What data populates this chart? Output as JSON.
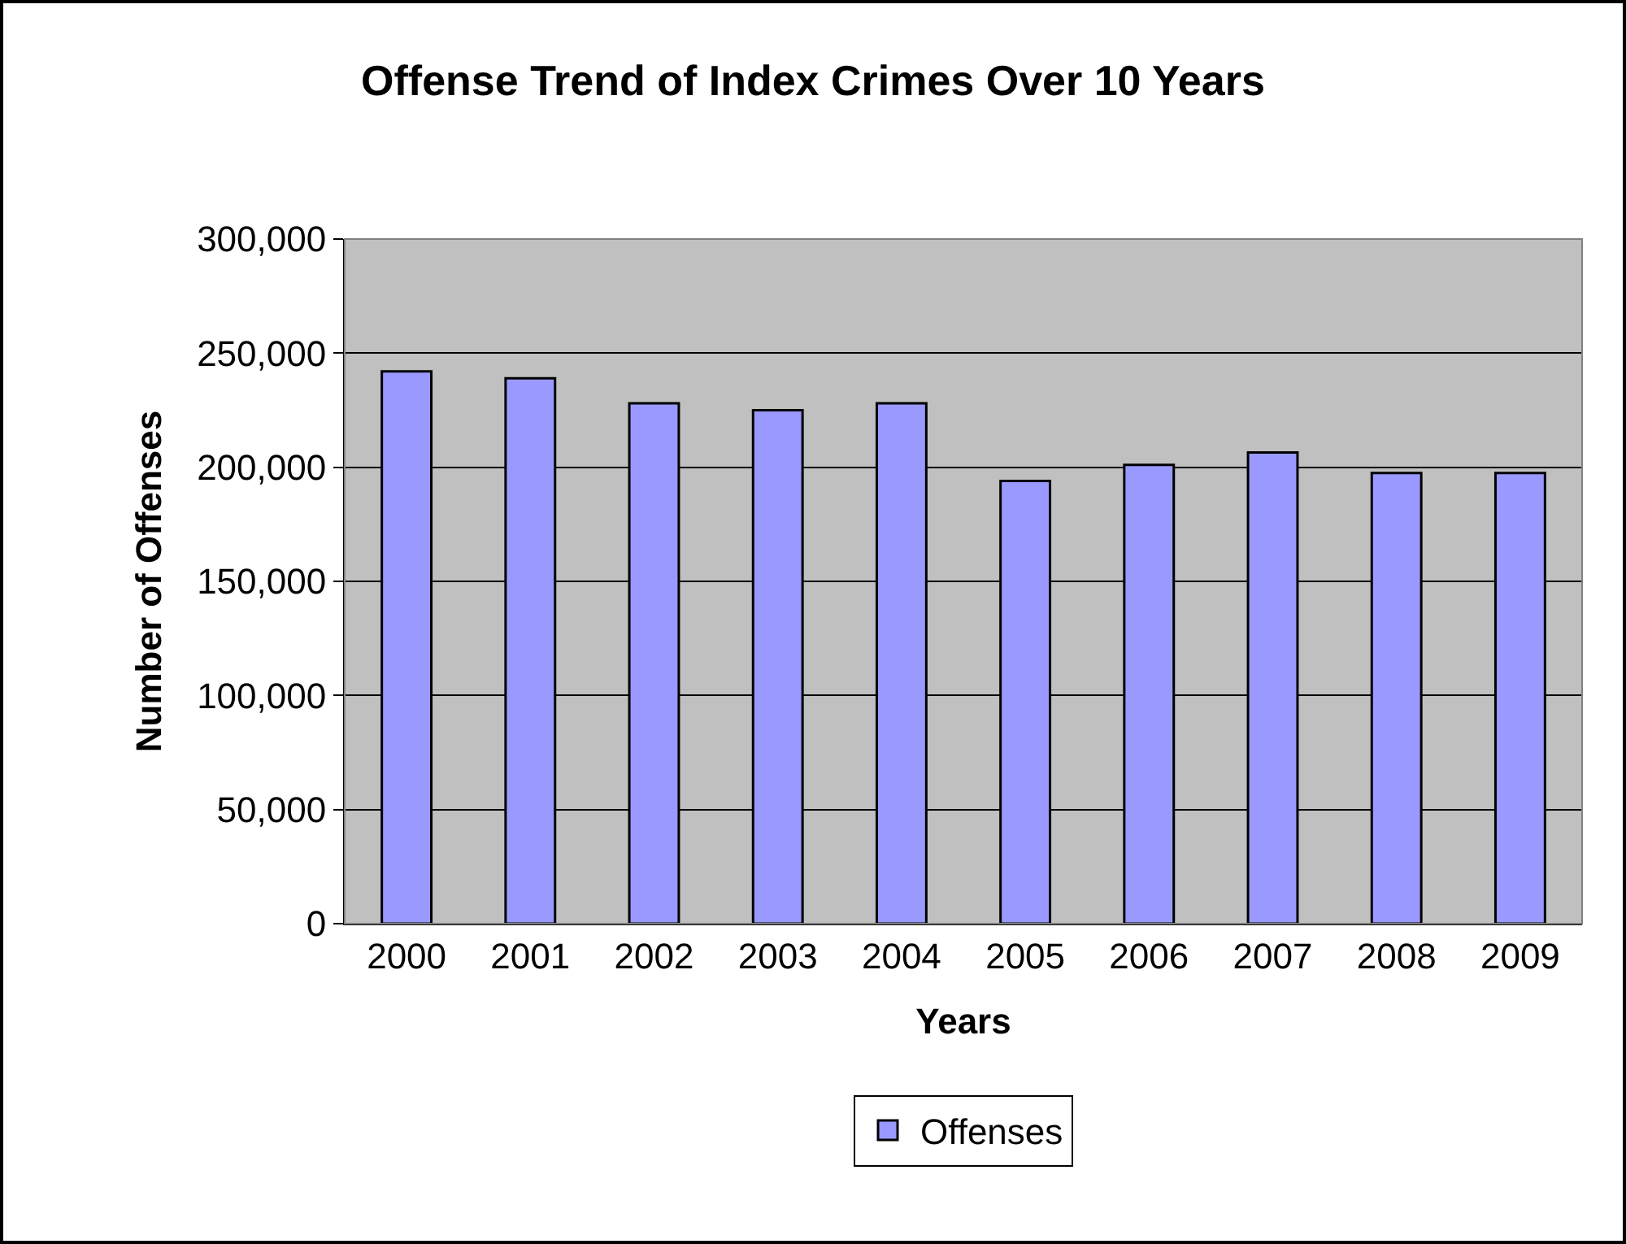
{
  "chart_data": {
    "type": "bar",
    "title": "Offense Trend of Index Crimes Over 10 Years",
    "xlabel": "Years",
    "ylabel": "Number of Offenses",
    "categories": [
      "2000",
      "2001",
      "2002",
      "2003",
      "2004",
      "2005",
      "2006",
      "2007",
      "2008",
      "2009"
    ],
    "series": [
      {
        "name": "Offenses",
        "color": "#9999ff",
        "values": [
          242000,
          239000,
          228000,
          225000,
          228000,
          194000,
          201000,
          206500,
          197500,
          197500
        ]
      }
    ],
    "ylim": [
      0,
      300000
    ],
    "yticks": [
      {
        "value": 0,
        "label": "0"
      },
      {
        "value": 50000,
        "label": "50,000"
      },
      {
        "value": 100000,
        "label": "100,000"
      },
      {
        "value": 150000,
        "label": "150,000"
      },
      {
        "value": 200000,
        "label": "200,000"
      },
      {
        "value": 250000,
        "label": "250,000"
      },
      {
        "value": 300000,
        "label": "300,000"
      }
    ],
    "grid": "y",
    "legend": "bottom"
  }
}
